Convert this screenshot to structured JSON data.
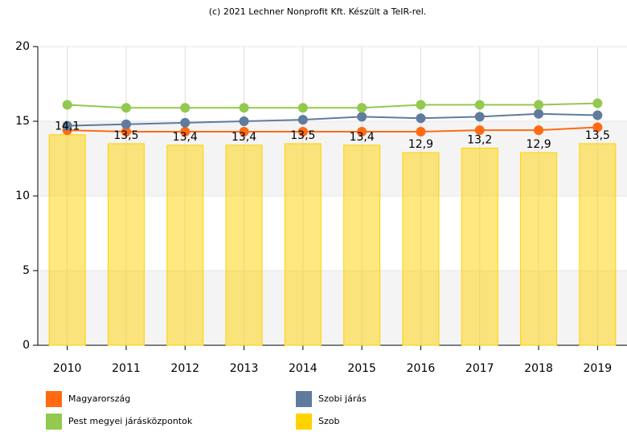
{
  "chart_data": {
    "type": "bar",
    "title": "(c) 2021 Lechner Nonprofit Kft. Készült a TeIR-rel.",
    "categories": [
      "2010",
      "2011",
      "2012",
      "2013",
      "2014",
      "2015",
      "2016",
      "2017",
      "2018",
      "2019"
    ],
    "series": [
      {
        "name": "Magyarország",
        "type": "line",
        "color": "#ff6a13",
        "values": [
          14.4,
          14.3,
          14.3,
          14.3,
          14.3,
          14.3,
          14.3,
          14.4,
          14.4,
          14.6
        ]
      },
      {
        "name": "Szobi járás",
        "type": "line",
        "color": "#5f7b9d",
        "values": [
          14.7,
          14.8,
          14.9,
          15.0,
          15.1,
          15.3,
          15.2,
          15.3,
          15.5,
          15.4
        ]
      },
      {
        "name": "Pest megyei járásközpontok",
        "type": "line",
        "color": "#92c94e",
        "values": [
          16.1,
          15.9,
          15.9,
          15.9,
          15.9,
          15.9,
          16.1,
          16.1,
          16.1,
          16.2
        ]
      },
      {
        "name": "Szob",
        "type": "bar",
        "color": "#ffd200",
        "values": [
          14.1,
          13.5,
          13.4,
          13.4,
          13.5,
          13.4,
          12.9,
          13.2,
          12.9,
          13.5
        ],
        "value_labels": [
          "14,1",
          "13,5",
          "13,4",
          "13,4",
          "13,5",
          "13,4",
          "12,9",
          "13,2",
          "12,9",
          "13,5"
        ]
      }
    ],
    "ylim": [
      0,
      20
    ],
    "yticks": [
      0,
      5,
      10,
      15,
      20
    ],
    "grid": true
  }
}
